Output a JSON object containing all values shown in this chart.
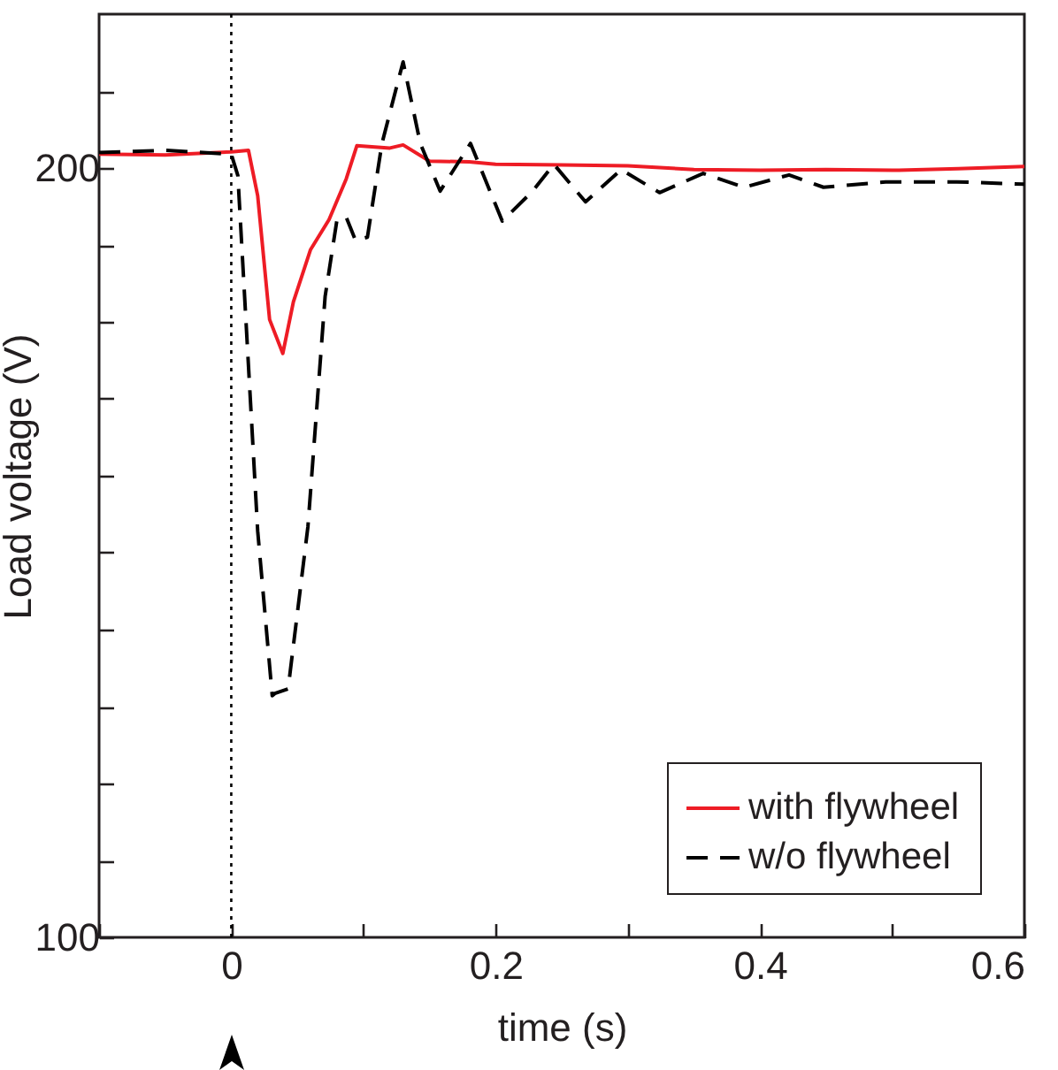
{
  "chart_data": {
    "type": "line",
    "xlabel": "time (s)",
    "ylabel": "Load voltage (V)",
    "xlim": [
      -0.1,
      0.6
    ],
    "ylim": [
      100,
      220
    ],
    "xticks": [
      {
        "value": -0.1,
        "label": null
      },
      0,
      {
        "value": 0.1,
        "label": null
      },
      0.2,
      {
        "value": 0.3,
        "label": null
      },
      0.4,
      {
        "value": 0.5,
        "label": null
      },
      0.6
    ],
    "yticks": [
      100,
      {
        "value": 110,
        "label": null
      },
      {
        "value": 120,
        "label": null
      },
      {
        "value": 130,
        "label": null
      },
      {
        "value": 140,
        "label": null
      },
      {
        "value": 150,
        "label": null
      },
      {
        "value": 160,
        "label": null
      },
      {
        "value": 170,
        "label": null
      },
      {
        "value": 180,
        "label": null
      },
      {
        "value": 190,
        "label": null
      },
      200,
      {
        "value": 210,
        "label": null
      }
    ],
    "grid": false,
    "legend": "bottom right",
    "marker": "none",
    "ref_lines": [
      {
        "axis": "x",
        "value": 0,
        "label": null,
        "color": "#000000",
        "line_style": "dotted"
      }
    ],
    "series": [
      {
        "name": "with flywheel",
        "color": "#ee1c25",
        "line_style": "solid",
        "x": [
          -0.1,
          -0.05,
          0,
          0.013,
          0.02,
          0.029,
          0.039,
          0.047,
          0.06,
          0.074,
          0.087,
          0.095,
          0.12,
          0.13,
          0.15,
          0.18,
          0.2,
          0.25,
          0.3,
          0.35,
          0.4,
          0.45,
          0.5,
          0.55,
          0.6
        ],
        "values": [
          201.8,
          201.7,
          202.1,
          202.3,
          196.4,
          180.3,
          175.9,
          182.6,
          189.4,
          193.3,
          198.6,
          202.9,
          202.6,
          203,
          200.9,
          200.8,
          200.5,
          200.4,
          200.3,
          199.8,
          199.7,
          199.8,
          199.7,
          199.9,
          200.2
        ]
      },
      {
        "name": "w/o  flywheel",
        "color": "#000000",
        "line_style": "dashed",
        "x": [
          -0.1,
          -0.05,
          0,
          0.005,
          0.02,
          0.031,
          0.033,
          0.043,
          0.058,
          0.071,
          0.08,
          0.087,
          0.094,
          0.103,
          0.114,
          0.13,
          0.143,
          0.158,
          0.181,
          0.205,
          0.228,
          0.244,
          0.268,
          0.295,
          0.324,
          0.357,
          0.388,
          0.422,
          0.448,
          0.495,
          0.549,
          0.6
        ],
        "values": [
          202,
          202.3,
          201.8,
          199,
          152.8,
          131.4,
          131.7,
          132.3,
          153.4,
          183.3,
          193.3,
          193.6,
          190.6,
          191,
          203.2,
          213.8,
          203.2,
          197,
          203.2,
          193.1,
          197,
          200.5,
          195.6,
          199.8,
          196.8,
          199.3,
          197.5,
          199.1,
          197.5,
          198.2,
          198.2,
          197.9
        ]
      }
    ]
  }
}
